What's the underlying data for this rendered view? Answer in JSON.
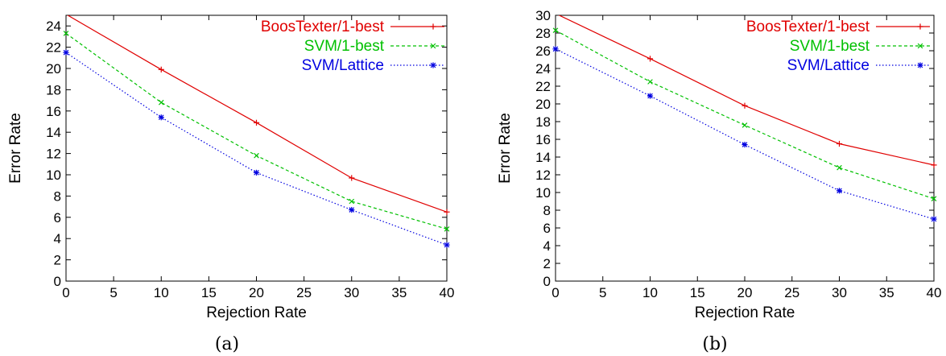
{
  "chart_data": [
    {
      "type": "line",
      "caption": "(a)",
      "xlabel": "Rejection Rate",
      "ylabel": "Error Rate",
      "xlim": [
        0,
        40
      ],
      "ylim": [
        0,
        25
      ],
      "xticks": [
        0,
        5,
        10,
        15,
        20,
        25,
        30,
        35,
        40
      ],
      "yticks": [
        0,
        2,
        4,
        6,
        8,
        10,
        12,
        14,
        16,
        18,
        20,
        22,
        24
      ],
      "grid": false,
      "legend_position": "top-right",
      "series": [
        {
          "name": "BoosTexter/1-best",
          "color": "#e00000",
          "dash": "solid",
          "marker": "plus",
          "x": [
            0,
            10,
            20,
            30,
            40
          ],
          "y": [
            25.1,
            19.9,
            14.9,
            9.7,
            6.5
          ]
        },
        {
          "name": "SVM/1-best",
          "color": "#00c000",
          "dash": "dashed",
          "marker": "cross",
          "x": [
            0,
            10,
            20,
            30,
            40
          ],
          "y": [
            23.3,
            16.8,
            11.8,
            7.5,
            4.9
          ]
        },
        {
          "name": "SVM/Lattice",
          "color": "#0000e0",
          "dash": "dotted",
          "marker": "star",
          "x": [
            0,
            10,
            20,
            30,
            40
          ],
          "y": [
            21.5,
            15.4,
            10.2,
            6.7,
            3.4
          ]
        }
      ]
    },
    {
      "type": "line",
      "caption": "(b)",
      "xlabel": "Rejection Rate",
      "ylabel": "Error Rate",
      "xlim": [
        0,
        40
      ],
      "ylim": [
        0,
        30
      ],
      "xticks": [
        0,
        5,
        10,
        15,
        20,
        25,
        30,
        35,
        40
      ],
      "yticks": [
        0,
        2,
        4,
        6,
        8,
        10,
        12,
        14,
        16,
        18,
        20,
        22,
        24,
        26,
        28,
        30
      ],
      "grid": false,
      "legend_position": "top-right",
      "series": [
        {
          "name": "BoosTexter/1-best",
          "color": "#e00000",
          "dash": "solid",
          "marker": "plus",
          "x": [
            0,
            10,
            20,
            30,
            40
          ],
          "y": [
            30.2,
            25.1,
            19.8,
            15.5,
            13.1
          ]
        },
        {
          "name": "SVM/1-best",
          "color": "#00c000",
          "dash": "dashed",
          "marker": "cross",
          "x": [
            0,
            10,
            20,
            30,
            40
          ],
          "y": [
            28.3,
            22.5,
            17.6,
            12.8,
            9.3
          ]
        },
        {
          "name": "SVM/Lattice",
          "color": "#0000e0",
          "dash": "dotted",
          "marker": "star",
          "x": [
            0,
            10,
            20,
            30,
            40
          ],
          "y": [
            26.2,
            20.9,
            15.4,
            10.2,
            7.0
          ]
        }
      ]
    }
  ]
}
